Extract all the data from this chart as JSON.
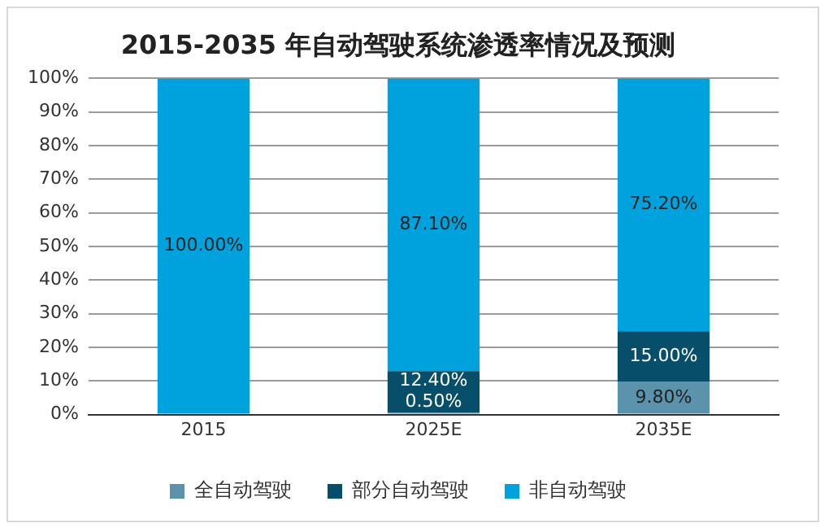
{
  "chart_data": {
    "type": "bar",
    "title": "2015-2035 年自动驾驶系统渗透率情况及预测",
    "categories": [
      "2015",
      "2025E",
      "2035E"
    ],
    "stacked": true,
    "ylim": [
      0,
      100
    ],
    "yticks": [
      {
        "value": 0,
        "label": "0%"
      },
      {
        "value": 10,
        "label": "10%"
      },
      {
        "value": 20,
        "label": "20%"
      },
      {
        "value": 30,
        "label": "30%"
      },
      {
        "value": 40,
        "label": "40%"
      },
      {
        "value": 50,
        "label": "50%"
      },
      {
        "value": 60,
        "label": "60%"
      },
      {
        "value": 70,
        "label": "70%"
      },
      {
        "value": 80,
        "label": "80%"
      },
      {
        "value": 90,
        "label": "90%"
      },
      {
        "value": 100,
        "label": "100%"
      }
    ],
    "grid": "y",
    "legend": "bottom",
    "series": [
      {
        "name": "全自动驾驶",
        "color": "#5a93ab",
        "values": [
          0,
          0.5,
          9.8
        ],
        "value_labels": [
          null,
          "0.50%",
          "9.80%"
        ]
      },
      {
        "name": "部分自动驾驶",
        "color": "#074e6a",
        "values": [
          0,
          12.4,
          15
        ],
        "value_labels": [
          null,
          "12.40%",
          "15.00%"
        ]
      },
      {
        "name": "非自动驾驶",
        "color": "#00a2de",
        "values": [
          100,
          87.1,
          75.2
        ],
        "value_labels": [
          "100.00%",
          "87.10%",
          "75.20%"
        ]
      }
    ]
  }
}
